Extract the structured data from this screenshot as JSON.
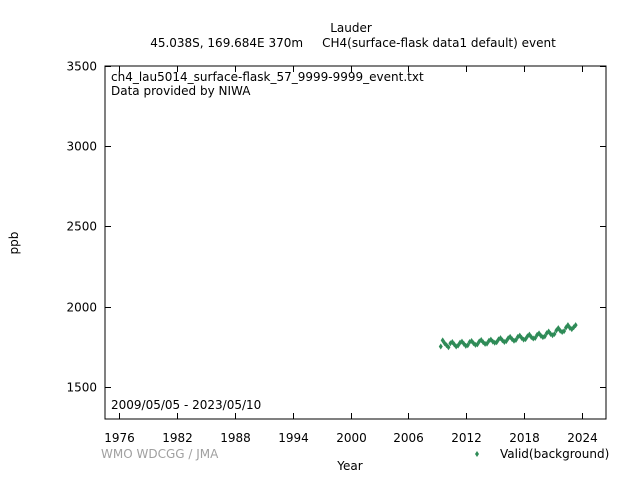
{
  "chart_data": {
    "type": "scatter",
    "title_lines": [
      "Lauder",
      "45.038S, 169.684E 370m     CH4(surface-flask data1 default) event"
    ],
    "annotations": [
      "ch4_lau5014_surface-flask_57_9999-9999_event.txt",
      "Data provided by NIWA"
    ],
    "date_range": "2009/05/05 - 2023/05/10",
    "xlabel": "Year",
    "ylabel": "ppb",
    "xlim": [
      1974.5,
      2026.5
    ],
    "ylim": [
      1300,
      3500
    ],
    "x_ticks": [
      1976,
      1982,
      1988,
      1994,
      2000,
      2006,
      2012,
      2018,
      2024
    ],
    "y_ticks": [
      1500,
      2000,
      2500,
      3000,
      3500
    ],
    "grid": false,
    "legend_position": "bottom-right",
    "credit": "WMO WDCGG / JMA",
    "series": [
      {
        "name": "Valid(background)",
        "color": "#2e8b57",
        "x": [
          2009.35,
          2009.55,
          2009.75,
          2009.95,
          2010.15,
          2010.35,
          2010.55,
          2010.75,
          2010.95,
          2011.15,
          2011.35,
          2011.55,
          2011.75,
          2011.95,
          2012.15,
          2012.35,
          2012.55,
          2012.75,
          2012.95,
          2013.15,
          2013.35,
          2013.55,
          2013.75,
          2013.95,
          2014.15,
          2014.35,
          2014.55,
          2014.75,
          2014.95,
          2015.15,
          2015.35,
          2015.55,
          2015.75,
          2015.95,
          2016.15,
          2016.35,
          2016.55,
          2016.75,
          2016.95,
          2017.15,
          2017.35,
          2017.55,
          2017.75,
          2017.95,
          2018.15,
          2018.35,
          2018.55,
          2018.75,
          2018.95,
          2019.15,
          2019.35,
          2019.55,
          2019.75,
          2019.95,
          2020.15,
          2020.35,
          2020.55,
          2020.75,
          2020.95,
          2021.15,
          2021.35,
          2021.55,
          2021.75,
          2021.95,
          2022.15,
          2022.35,
          2022.55,
          2022.75,
          2022.95,
          2023.15,
          2023.35
        ],
        "y": [
          1752,
          1790,
          1772,
          1760,
          1747,
          1772,
          1780,
          1765,
          1752,
          1758,
          1776,
          1782,
          1768,
          1756,
          1760,
          1780,
          1786,
          1772,
          1762,
          1765,
          1784,
          1792,
          1778,
          1768,
          1770,
          1788,
          1795,
          1782,
          1775,
          1778,
          1796,
          1804,
          1790,
          1780,
          1785,
          1803,
          1812,
          1798,
          1788,
          1792,
          1812,
          1820,
          1805,
          1795,
          1798,
          1816,
          1826,
          1810,
          1802,
          1805,
          1824,
          1834,
          1818,
          1810,
          1815,
          1835,
          1845,
          1830,
          1822,
          1830,
          1852,
          1866,
          1850,
          1842,
          1848,
          1870,
          1885,
          1868,
          1860,
          1872,
          1885
        ]
      }
    ]
  }
}
